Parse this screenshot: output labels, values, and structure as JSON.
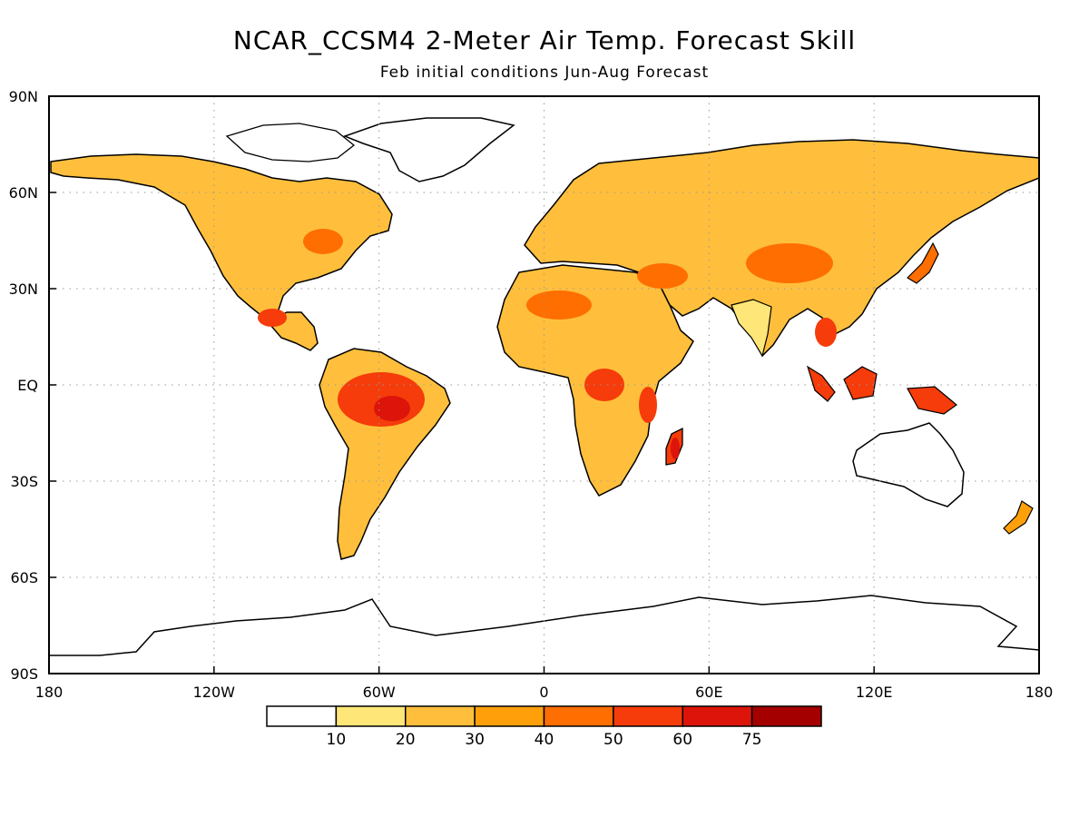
{
  "title": "NCAR_CCSM4 2-Meter Air Temp. Forecast Skill",
  "subtitle": "Feb initial conditions  Jun-Aug Forecast",
  "lat_labels": [
    "90N",
    "60N",
    "30N",
    "EQ",
    "30S",
    "60S",
    "90S"
  ],
  "lon_labels": [
    "180",
    "120W",
    "60W",
    "0",
    "60E",
    "120E",
    "180"
  ],
  "lat_values": [
    90,
    60,
    30,
    0,
    -30,
    -60,
    -90
  ],
  "lon_values": [
    -180,
    -120,
    -60,
    0,
    60,
    120,
    180
  ],
  "colorbar": {
    "colors": [
      "#ffffff",
      "#ffe678",
      "#ffbf3c",
      "#ffa00a",
      "#ff6e00",
      "#f53c0a",
      "#dc140a",
      "#a50000"
    ],
    "labels": [
      "10",
      "20",
      "30",
      "40",
      "50",
      "60",
      "75"
    ]
  },
  "colors": {
    "land_low": "#ffe678",
    "land_mid": "#ffbf3c",
    "land_hi": "#ff6e00",
    "land_top": "#dc140a"
  }
}
